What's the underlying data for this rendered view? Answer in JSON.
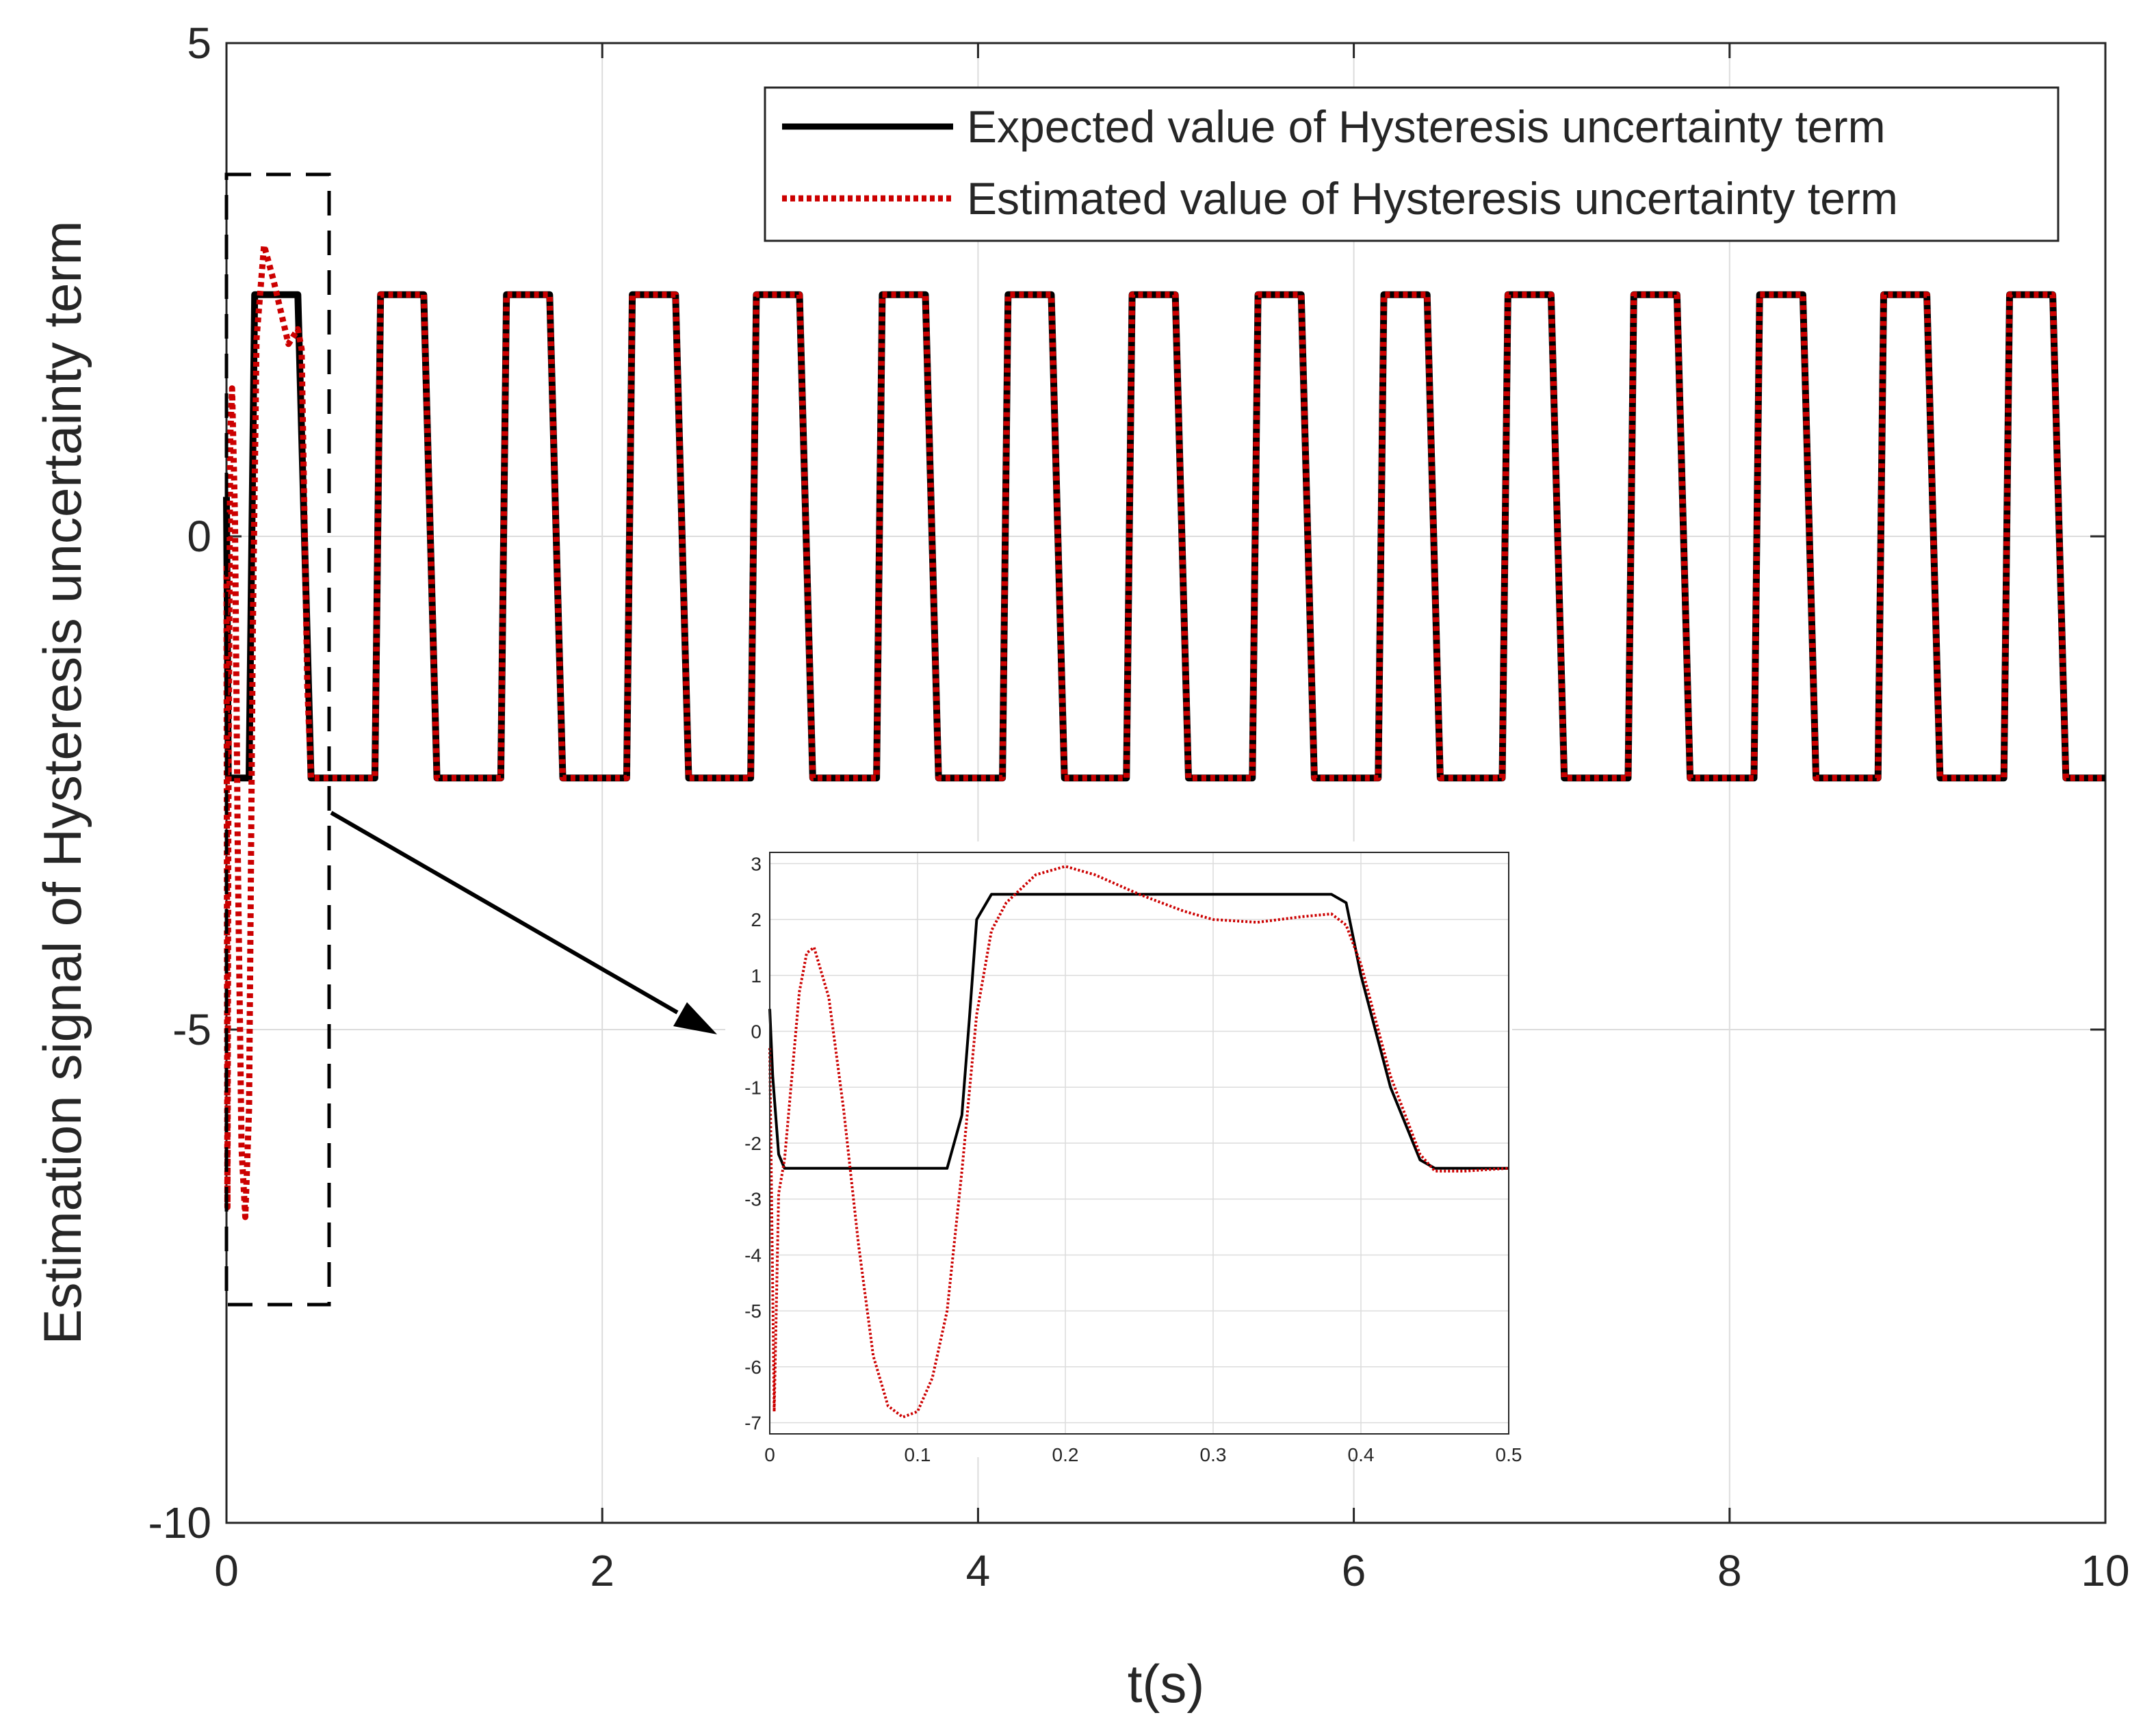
{
  "chart_data": [
    {
      "type": "line",
      "title": "",
      "xlabel": "t(s)",
      "ylabel": "Estimation signal of Hysteresis uncertainty term",
      "xlim": [
        0,
        10
      ],
      "ylim": [
        -10,
        5
      ],
      "xticks": [
        0,
        2,
        4,
        6,
        8,
        10
      ],
      "yticks": [
        5,
        0,
        -5,
        -10
      ],
      "xtick_labels": [
        "0",
        "2",
        "4",
        "6",
        "8",
        "10"
      ],
      "ytick_labels": [
        "5",
        "0",
        "-5",
        "-10"
      ],
      "grid": true,
      "legend_position": "top-right",
      "colors": {
        "expected": "#000000",
        "estimated": "#cc0000",
        "grid": "#dcdcdc"
      },
      "square_wave": {
        "amplitude": 2.45,
        "period_s": 0.667,
        "rise_time_s": 0.05,
        "first_rise_s": 0.13,
        "initial_value": -2.45
      },
      "series": [
        {
          "name": "Expected value of Hysteresis uncertainty term",
          "style": "solid",
          "color": "#000000",
          "x": [
            0,
            0.01,
            0.12,
            0.15,
            0.38,
            0.45,
            0.79,
            0.82,
            1.05,
            1.12,
            1.46,
            1.49,
            1.72,
            1.79,
            2.13,
            2.16,
            2.39,
            2.46,
            2.79,
            2.82,
            3.05,
            3.12,
            3.46,
            3.49,
            3.72,
            3.79,
            4.13,
            4.16,
            4.39,
            4.46,
            4.79,
            4.82,
            5.05,
            5.12,
            5.46,
            5.49,
            5.72,
            5.79,
            6.13,
            6.16,
            6.39,
            6.46,
            6.79,
            6.82,
            7.05,
            7.12,
            7.46,
            7.49,
            7.72,
            7.79,
            8.13,
            8.16,
            8.39,
            8.46,
            8.79,
            8.82,
            9.05,
            9.12,
            9.46,
            9.49,
            9.72,
            9.79,
            10
          ],
          "y": [
            0.4,
            -2.45,
            -2.45,
            2.45,
            2.45,
            -2.45,
            -2.45,
            2.45,
            2.45,
            -2.45,
            -2.45,
            2.45,
            2.45,
            -2.45,
            -2.45,
            2.45,
            2.45,
            -2.45,
            -2.45,
            2.45,
            2.45,
            -2.45,
            -2.45,
            2.45,
            2.45,
            -2.45,
            -2.45,
            2.45,
            2.45,
            -2.45,
            -2.45,
            2.45,
            2.45,
            -2.45,
            -2.45,
            2.45,
            2.45,
            -2.45,
            -2.45,
            2.45,
            2.45,
            -2.45,
            -2.45,
            2.45,
            2.45,
            -2.45,
            -2.45,
            2.45,
            2.45,
            -2.45,
            -2.45,
            2.45,
            2.45,
            -2.45,
            -2.45,
            2.45,
            2.45,
            -2.45,
            -2.45,
            2.45,
            2.45,
            -2.45,
            -2.45
          ]
        },
        {
          "name": "Estimated value of Hysteresis uncertainty term",
          "style": "dotted",
          "color": "#cc0000",
          "x": [
            0,
            0.005,
            0.01,
            0.02,
            0.03,
            0.045,
            0.06,
            0.08,
            0.1,
            0.12,
            0.14,
            0.16,
            0.2,
            0.25,
            0.33,
            0.38,
            0.4,
            0.43,
            0.45
          ],
          "y": [
            -0.3,
            -6.8,
            -2.9,
            1.0,
            1.5,
            0.2,
            -3.2,
            -6.2,
            -6.9,
            -5.8,
            -1.0,
            2.0,
            2.95,
            2.6,
            1.95,
            2.1,
            1.9,
            -1.5,
            -2.45
          ],
          "note": "Converges to the expected square wave after ~0.45 s"
        }
      ],
      "annotations": [
        "Dashed zoom box around t = 0–0.5 s with arrow pointing to the inset"
      ]
    },
    {
      "type": "line",
      "title": "",
      "position": "inset",
      "xlim": [
        0,
        0.5
      ],
      "ylim": [
        -7.2,
        3.2
      ],
      "xticks": [
        0,
        0.1,
        0.2,
        0.3,
        0.4,
        0.5
      ],
      "yticks": [
        3,
        2,
        1,
        0,
        -1,
        -2,
        -3,
        -4,
        -5,
        -6,
        -7
      ],
      "xtick_labels": [
        "0",
        "0.1",
        "0.2",
        "0.3",
        "0.4",
        "0.5"
      ],
      "ytick_labels": [
        "3",
        "2",
        "1",
        "0",
        "-1",
        "-2",
        "-3",
        "-4",
        "-5",
        "-6",
        "-7"
      ],
      "grid": true,
      "series": [
        {
          "name": "Expected value of Hysteresis uncertainty term",
          "style": "solid",
          "color": "#000000",
          "x": [
            0,
            0.002,
            0.006,
            0.01,
            0.12,
            0.13,
            0.135,
            0.14,
            0.15,
            0.38,
            0.39,
            0.4,
            0.42,
            0.44,
            0.45,
            0.47,
            0.5
          ],
          "y": [
            0.4,
            -0.8,
            -2.2,
            -2.45,
            -2.45,
            -1.5,
            0.2,
            2.0,
            2.45,
            2.45,
            2.3,
            1.0,
            -1.0,
            -2.3,
            -2.45,
            -2.45,
            -2.45
          ]
        },
        {
          "name": "Estimated value of Hysteresis uncertainty term",
          "style": "dotted",
          "color": "#cc0000",
          "x": [
            0,
            0.003,
            0.006,
            0.01,
            0.015,
            0.02,
            0.025,
            0.03,
            0.04,
            0.05,
            0.06,
            0.07,
            0.08,
            0.09,
            0.1,
            0.11,
            0.12,
            0.13,
            0.14,
            0.15,
            0.16,
            0.18,
            0.2,
            0.22,
            0.25,
            0.28,
            0.3,
            0.33,
            0.36,
            0.38,
            0.39,
            0.4,
            0.42,
            0.44,
            0.45,
            0.47,
            0.5
          ],
          "y": [
            -0.3,
            -6.8,
            -2.9,
            -2.3,
            -0.8,
            0.7,
            1.4,
            1.5,
            0.6,
            -1.4,
            -3.8,
            -5.8,
            -6.7,
            -6.9,
            -6.8,
            -6.2,
            -5.0,
            -2.5,
            0.3,
            1.8,
            2.3,
            2.8,
            2.95,
            2.8,
            2.45,
            2.15,
            2.0,
            1.95,
            2.05,
            2.1,
            1.9,
            1.2,
            -0.8,
            -2.2,
            -2.5,
            -2.5,
            -2.45
          ]
        }
      ]
    }
  ]
}
